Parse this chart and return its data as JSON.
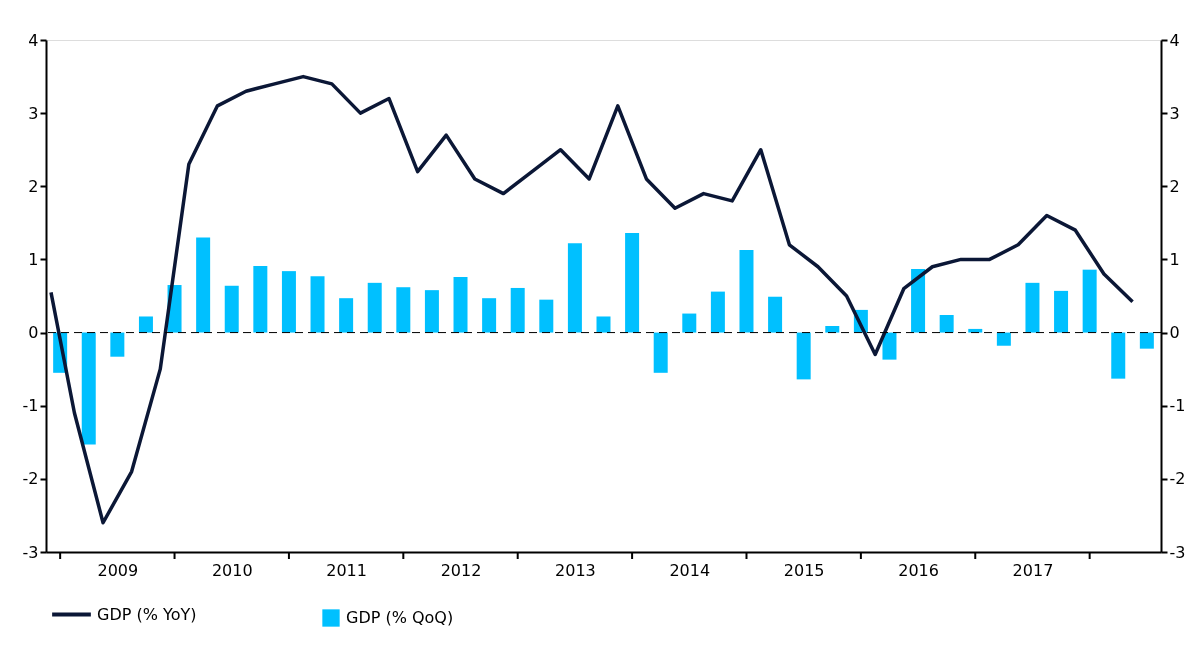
{
  "chart_data": {
    "type": "bar",
    "xlim": [
      2008.92,
      2018.58
    ],
    "xticks": [
      {
        "value": 2009,
        "label": null
      },
      {
        "value": 2009.5,
        "label": "2009"
      },
      {
        "value": 2010,
        "label": null
      },
      {
        "value": 2010.5,
        "label": "2010"
      },
      {
        "value": 2011,
        "label": null
      },
      {
        "value": 2011.5,
        "label": "2011"
      },
      {
        "value": 2012,
        "label": null
      },
      {
        "value": 2012.5,
        "label": "2012"
      },
      {
        "value": 2013,
        "label": null
      },
      {
        "value": 2013.5,
        "label": "2013"
      },
      {
        "value": 2014,
        "label": null
      },
      {
        "value": 2014.5,
        "label": "2014"
      },
      {
        "value": 2015,
        "label": null
      },
      {
        "value": 2015.5,
        "label": "2015"
      },
      {
        "value": 2016,
        "label": null
      },
      {
        "value": 2016.5,
        "label": "2016"
      },
      {
        "value": 2017,
        "label": null
      },
      {
        "value": 2017.5,
        "label": "2017"
      },
      {
        "value": 2018,
        "label": null
      }
    ],
    "ylim": [
      -3,
      4
    ],
    "yticks": [
      -3,
      -2,
      -1,
      0,
      1,
      2,
      3,
      4
    ],
    "y2lim": [
      -3,
      4
    ],
    "y2ticks": [
      -3,
      -2,
      -1,
      0,
      1,
      2,
      3,
      4
    ],
    "grid": false,
    "legend": "bottom left",
    "ref_lines": [
      {
        "axis": "y",
        "value": 0,
        "color": "#000000",
        "line_style": "dashed"
      }
    ],
    "series": [
      {
        "name": "GDP (% YoY)",
        "type": "line",
        "color": "#0b1736",
        "x": [
          2008.92,
          2009.125,
          2009.375,
          2009.625,
          2009.875,
          2010.125,
          2010.375,
          2010.625,
          2010.875,
          2011.125,
          2011.375,
          2011.625,
          2011.875,
          2012.125,
          2012.375,
          2012.625,
          2012.875,
          2013.125,
          2013.375,
          2013.625,
          2013.875,
          2014.125,
          2014.375,
          2014.625,
          2014.875,
          2015.125,
          2015.375,
          2015.625,
          2015.875,
          2016.125,
          2016.375,
          2016.625,
          2016.875,
          2017.125,
          2017.375,
          2017.625,
          2017.875,
          2018.125,
          2018.375
        ],
        "values": [
          0.55,
          -1.1,
          -2.6,
          -1.9,
          -0.5,
          2.3,
          3.1,
          3.3,
          3.4,
          3.5,
          3.4,
          3.0,
          3.2,
          2.2,
          2.7,
          2.1,
          1.9,
          2.2,
          2.5,
          2.1,
          3.1,
          2.1,
          1.7,
          1.9,
          1.8,
          2.5,
          1.2,
          0.9,
          0.5,
          -0.3,
          0.6,
          0.9,
          1.0,
          1.0,
          1.2,
          1.6,
          1.4,
          0.8,
          0.42
        ]
      },
      {
        "name": "GDP (% QoQ)",
        "color": "#00c0ff",
        "x": [
          2009.0,
          2009.25,
          2009.5,
          2009.75,
          2010.0,
          2010.25,
          2010.5,
          2010.75,
          2011.0,
          2011.25,
          2011.5,
          2011.75,
          2012.0,
          2012.25,
          2012.5,
          2012.75,
          2013.0,
          2013.25,
          2013.5,
          2013.75,
          2014.0,
          2014.25,
          2014.5,
          2014.75,
          2015.0,
          2015.25,
          2015.5,
          2015.75,
          2016.0,
          2016.25,
          2016.5,
          2016.75,
          2017.0,
          2017.25,
          2017.5,
          2017.75,
          2018.0,
          2018.25,
          2018.5
        ],
        "values": [
          -0.55,
          -1.53,
          -0.33,
          0.22,
          0.65,
          1.3,
          0.64,
          0.91,
          0.84,
          0.77,
          0.47,
          0.68,
          0.62,
          0.58,
          0.76,
          0.47,
          0.61,
          0.45,
          1.22,
          0.22,
          1.36,
          -0.55,
          0.26,
          0.56,
          1.13,
          0.49,
          -0.64,
          0.09,
          0.31,
          -0.37,
          0.87,
          0.24,
          0.05,
          -0.18,
          0.68,
          0.57,
          0.86,
          -0.63,
          -0.22
        ]
      }
    ]
  }
}
